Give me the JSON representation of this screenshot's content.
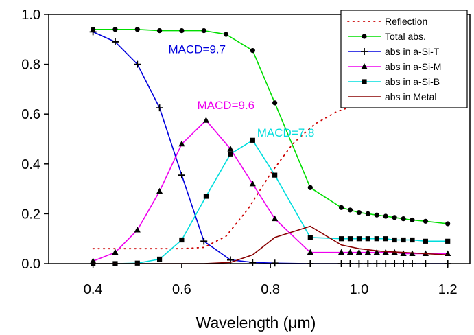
{
  "chart_data": {
    "type": "line",
    "xlabel": "Wavelength (μm)",
    "ylabel": "",
    "xlim": [
      0.3,
      1.25
    ],
    "ylim": [
      0,
      1.0
    ],
    "xticks": [
      "0.4",
      "0.6",
      "0.8",
      "1.0",
      "1.2"
    ],
    "xtick_values": [
      0.4,
      0.6,
      0.8,
      1.0,
      1.2
    ],
    "yticks": [
      "0.0",
      "0.2",
      "0.4",
      "0.6",
      "0.8",
      "1.0"
    ],
    "ytick_values": [
      0.0,
      0.2,
      0.4,
      0.6,
      0.8,
      1.0
    ],
    "grid": false,
    "legend_position": "top-right",
    "series": [
      {
        "name": "Reflection",
        "color": "#cc0000",
        "style": "dotted",
        "marker": "none",
        "x": [
          0.4,
          0.45,
          0.5,
          0.55,
          0.6,
          0.65,
          0.7,
          0.75,
          0.8,
          0.85,
          0.9,
          0.95,
          1.0
        ],
        "y": [
          0.06,
          0.06,
          0.06,
          0.06,
          0.06,
          0.065,
          0.11,
          0.22,
          0.36,
          0.48,
          0.56,
          0.61,
          0.64
        ]
      },
      {
        "name": "Total abs.",
        "color": "#00dd00",
        "marker": "circle",
        "x": [
          0.4,
          0.45,
          0.5,
          0.55,
          0.6,
          0.65,
          0.7,
          0.76,
          0.81,
          0.89,
          0.96,
          0.98,
          1.0,
          1.02,
          1.04,
          1.06,
          1.08,
          1.1,
          1.12,
          1.15,
          1.2
        ],
        "y": [
          0.94,
          0.94,
          0.94,
          0.935,
          0.935,
          0.935,
          0.92,
          0.855,
          0.645,
          0.305,
          0.225,
          0.215,
          0.205,
          0.2,
          0.195,
          0.19,
          0.185,
          0.18,
          0.175,
          0.17,
          0.16
        ]
      },
      {
        "name": "abs in a-Si-T",
        "color": "#0000dd",
        "marker": "plus",
        "x": [
          0.4,
          0.45,
          0.5,
          0.55,
          0.6,
          0.65,
          0.71,
          0.76,
          0.81,
          0.89,
          0.96,
          0.98,
          1.0,
          1.02,
          1.04,
          1.06,
          1.08,
          1.1,
          1.12,
          1.15,
          1.2
        ],
        "y": [
          0.93,
          0.89,
          0.8,
          0.625,
          0.355,
          0.09,
          0.015,
          0.005,
          0.002,
          0.0,
          0.0,
          0.0,
          0.0,
          0.0,
          0.0,
          0.0,
          0.0,
          0.0,
          0.0,
          0.0,
          0.0
        ]
      },
      {
        "name": "abs in a-Si-M",
        "color": "#ee00ee",
        "marker": "triangle",
        "x": [
          0.4,
          0.45,
          0.5,
          0.55,
          0.6,
          0.655,
          0.71,
          0.76,
          0.81,
          0.89,
          0.96,
          0.98,
          1.0,
          1.02,
          1.04,
          1.06,
          1.08,
          1.1,
          1.12,
          1.15,
          1.2
        ],
        "y": [
          0.01,
          0.045,
          0.135,
          0.29,
          0.48,
          0.575,
          0.46,
          0.32,
          0.18,
          0.045,
          0.045,
          0.045,
          0.045,
          0.045,
          0.045,
          0.045,
          0.045,
          0.04,
          0.04,
          0.04,
          0.04
        ]
      },
      {
        "name": " abs in a-Si-B",
        "color": "#00dddd",
        "marker": "square",
        "x": [
          0.4,
          0.45,
          0.5,
          0.55,
          0.6,
          0.655,
          0.71,
          0.76,
          0.81,
          0.89,
          0.96,
          0.98,
          1.0,
          1.02,
          1.04,
          1.06,
          1.08,
          1.1,
          1.12,
          1.15,
          1.2
        ],
        "y": [
          0.0,
          0.0,
          0.002,
          0.018,
          0.095,
          0.27,
          0.44,
          0.495,
          0.355,
          0.105,
          0.1,
          0.1,
          0.1,
          0.1,
          0.1,
          0.1,
          0.095,
          0.095,
          0.095,
          0.09,
          0.09
        ]
      },
      {
        "name": "abs in Metal",
        "color": "#880000",
        "marker": "none",
        "x": [
          0.4,
          0.65,
          0.71,
          0.76,
          0.81,
          0.89,
          0.96,
          1.0,
          1.05,
          1.1,
          1.15,
          1.2
        ],
        "y": [
          0.0,
          0.0,
          0.005,
          0.035,
          0.105,
          0.15,
          0.075,
          0.06,
          0.05,
          0.045,
          0.04,
          0.035
        ]
      }
    ],
    "annotations": [
      {
        "text": "MACD=9.7",
        "x": 0.57,
        "y": 0.845,
        "color": "#0000dd"
      },
      {
        "text": "MACD=9.6",
        "x": 0.635,
        "y": 0.62,
        "color": "#ee00ee"
      },
      {
        "text": "MACD=7.8",
        "x": 0.77,
        "y": 0.51,
        "color": "#00dddd"
      }
    ]
  }
}
